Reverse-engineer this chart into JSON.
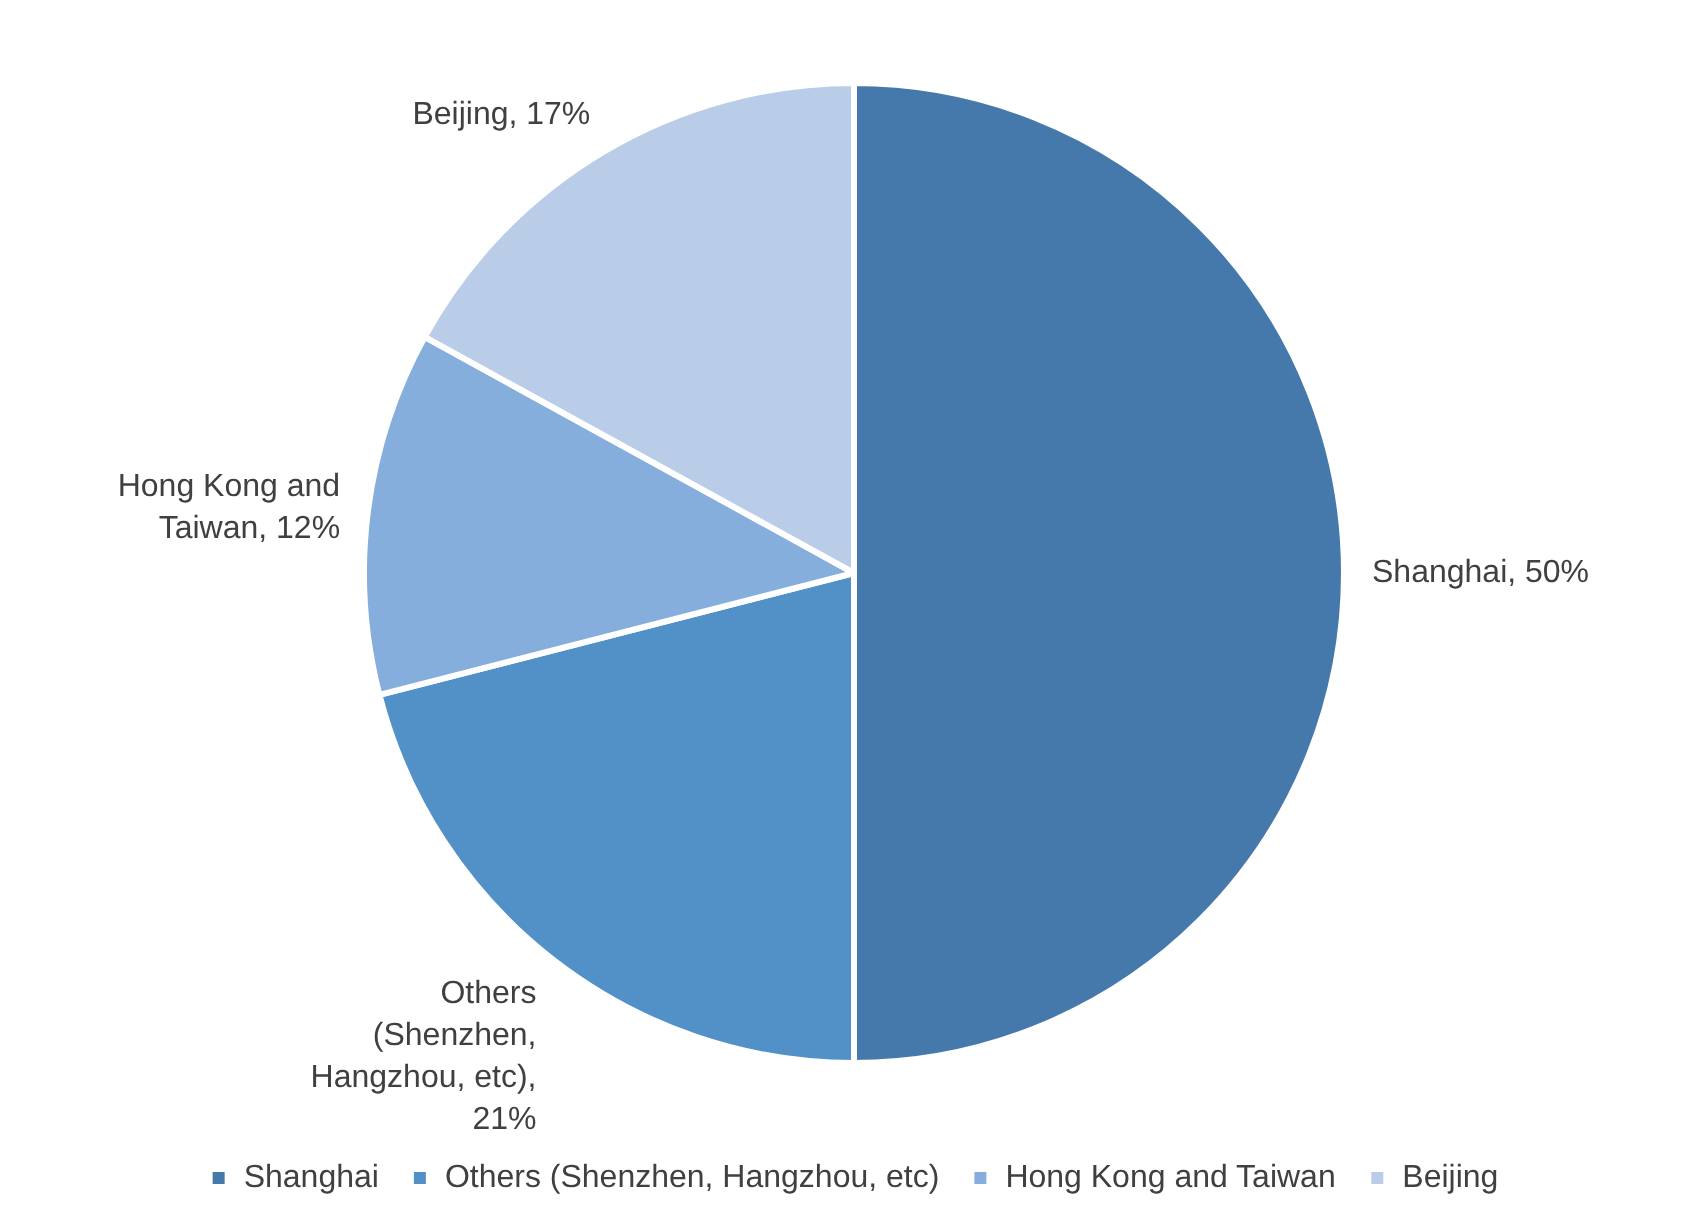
{
  "chart_data": {
    "type": "pie",
    "categories": [
      "Shanghai",
      "Others (Shenzhen, Hangzhou, etc)",
      "Hong Kong and Taiwan",
      "Beijing"
    ],
    "values": [
      50,
      21,
      12,
      17
    ],
    "value_labels": [
      "Shanghai, 50%",
      "Others (Shenzhen, Hangzhou, etc), 21%",
      "Hong Kong and Taiwan, 12%",
      "Beijing, 17%"
    ],
    "colors": [
      "#4679ab",
      "#5290c8",
      "#85aedc",
      "#b9cde8"
    ],
    "legend": "bottom"
  }
}
